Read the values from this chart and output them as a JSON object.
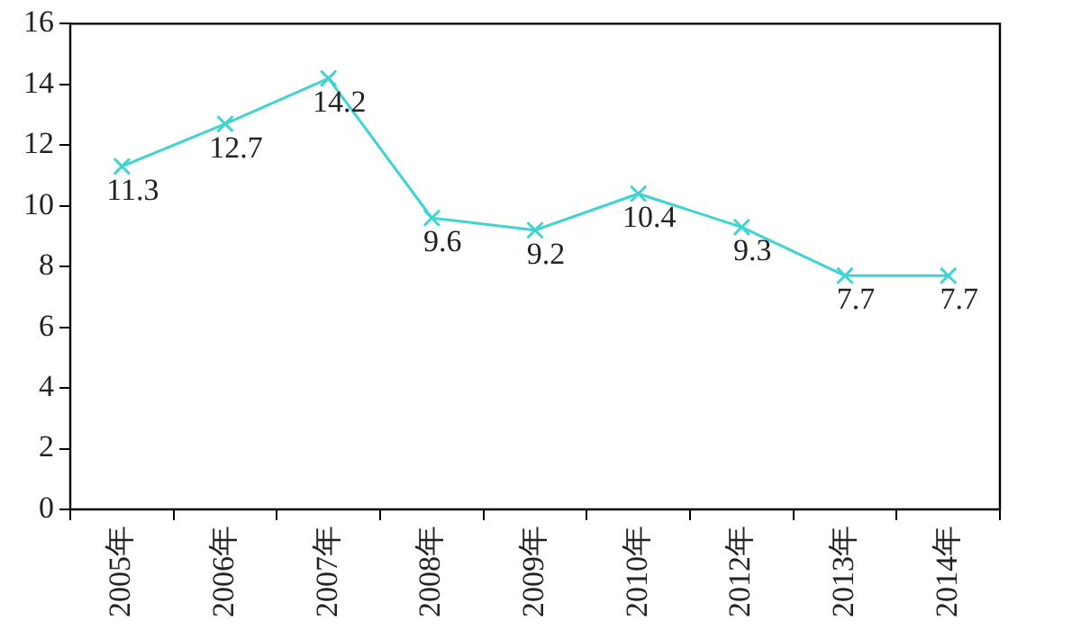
{
  "chart_data": {
    "type": "line",
    "categories": [
      "2005年",
      "2006年",
      "2007年",
      "2008年",
      "2009年",
      "2010年",
      "2012年",
      "2013年",
      "2014年"
    ],
    "series": [
      {
        "color": "#3fd3d3",
        "values": [
          11.3,
          12.7,
          14.2,
          9.6,
          9.2,
          10.4,
          9.3,
          7.7,
          7.7
        ]
      }
    ],
    "ylim": [
      0,
      16
    ],
    "yticks": [
      0,
      2,
      4,
      6,
      8,
      10,
      12,
      14,
      16
    ],
    "grid": false,
    "marker": "cross",
    "line_style": "solid",
    "data_labels": true
  }
}
